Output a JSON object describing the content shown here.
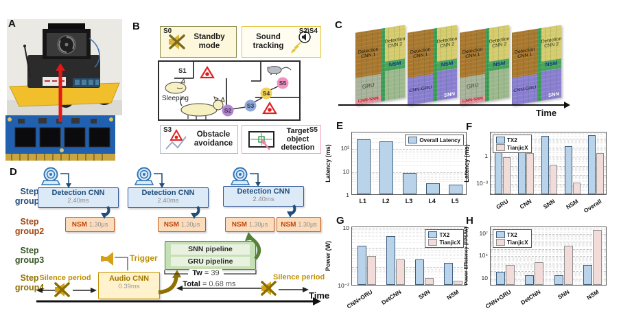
{
  "figure": {
    "panel_labels": {
      "a": "A",
      "b": "B",
      "c": "C",
      "d": "D",
      "e": "E",
      "f": "F",
      "g": "G",
      "h": "H"
    }
  },
  "pb": {
    "standby": {
      "tag": "S0",
      "label": "Standby mode"
    },
    "sound": {
      "tag": "S2\\S4",
      "label": "Sound tracking"
    },
    "map": {
      "s1": "S1",
      "sleeping": "Sleeping",
      "nodes": [
        "S2",
        "S3",
        "S4",
        "S5"
      ]
    },
    "obstacle": {
      "tag": "S3",
      "label": "Obstacle avoidance"
    },
    "target": {
      "tag": "S5",
      "label": "Target object detection"
    }
  },
  "pc": {
    "time_label": "Time",
    "chips": [
      {
        "type": "A",
        "labels": {
          "det1": "Detection CNN 1",
          "det2": "Detection CNN 2",
          "nsm": "NSM",
          "bl": "GRU",
          "bs": "CNN-SNN"
        }
      },
      {
        "type": "B",
        "labels": {
          "det1": "Detection CNN 1",
          "det2": "Detection CNN 2",
          "nsm": "NSM",
          "bl": "CNN-GRU",
          "br": "SNN"
        }
      },
      {
        "type": "A",
        "labels": {
          "det1": "Detection CNN 1",
          "det2": "Detection CNN 2",
          "nsm": "NSM",
          "bl": "GRU",
          "bs": "CNN-SNN"
        }
      },
      {
        "type": "B",
        "labels": {
          "det1": "Detection CNN 1",
          "det2": "Detection CNN 2",
          "nsm": "NSM",
          "bl": "CNN-GRU",
          "br": "SNN"
        }
      }
    ]
  },
  "pd": {
    "steps": [
      "Step group1",
      "Step group2",
      "Step group3",
      "Step group4"
    ],
    "step_colors": [
      "#1f4e79",
      "#a3420a",
      "#375623",
      "#8f7000"
    ],
    "det_cnn": {
      "title": "Detection CNN",
      "time": "2.40ms"
    },
    "nsm": {
      "title": "NSM",
      "time": "1.30μs"
    },
    "pipelines": {
      "snn": "SNN pipeline",
      "gru": "GRU pipeline"
    },
    "tw": {
      "label": "Tw",
      "value": "= 39"
    },
    "total": {
      "label": "Total",
      "value": "= 0.68 ms"
    },
    "trigger": "Trigger",
    "audio": {
      "title": "Audio CNN",
      "time": "0.39ms"
    },
    "silence": "Silence period",
    "time_label": "Time"
  },
  "chart_data": [
    {
      "id": "e",
      "type": "bar",
      "log": true,
      "ylabel": "Latency (ms)",
      "ymin": 1,
      "ymax": 500,
      "yticks": [
        {
          "v": 1,
          "label": "1"
        },
        {
          "v": 10,
          "label": "10"
        },
        {
          "v": 100,
          "label": "10²"
        }
      ],
      "categories": [
        "L1",
        "L2",
        "L3",
        "L4",
        "L5"
      ],
      "series": [
        {
          "name": "Overall Latency",
          "color": "#b9d3ea",
          "border": "#3f5d7a",
          "values": [
            230,
            185,
            8,
            3,
            2.6
          ]
        }
      ],
      "legend_pos": "tr",
      "rotate_x": false
    },
    {
      "id": "f",
      "type": "bar",
      "log": true,
      "ylabel": "Latency (ms)",
      "ymin": 5e-05,
      "ymax": 500,
      "yticks": [
        {
          "v": 1,
          "label": "1"
        },
        {
          "v": 0.001,
          "label": "10⁻³"
        }
      ],
      "categories": [
        "GRU",
        "CNN",
        "SNN",
        "NSM",
        "Overall"
      ],
      "series": [
        {
          "name": "TX2",
          "color": "#b9d3ea",
          "border": "#3f5d7a",
          "values": [
            6.5,
            11,
            150,
            10,
            190
          ]
        },
        {
          "name": "TianjicX",
          "color": "#f1dcda",
          "border": "#8f8f8f",
          "values": [
            0.6,
            1.9,
            0.1,
            0.001,
            1.9
          ]
        }
      ],
      "legend_pos": "tl",
      "rotate_x": true
    },
    {
      "id": "g",
      "type": "bar",
      "log": true,
      "ylabel": "Power (W)",
      "ymin": 0.01,
      "ymax": 12,
      "yticks": [
        {
          "v": 10,
          "label": "10"
        },
        {
          "v": 0.01,
          "label": "10⁻²"
        }
      ],
      "categories": [
        "CNN+GRU",
        "DetCNN",
        "SNN",
        "NSM"
      ],
      "series": [
        {
          "name": "TX2",
          "color": "#b9d3ea",
          "border": "#3f5d7a",
          "values": [
            1.1,
            3.5,
            0.22,
            0.14
          ]
        },
        {
          "name": "TianjicX",
          "color": "#f1dcda",
          "border": "#8f8f8f",
          "values": [
            0.33,
            0.21,
            0.023,
            0.017
          ]
        }
      ],
      "legend_pos": "tr",
      "rotate_x": true
    },
    {
      "id": "h",
      "type": "bar",
      "log": true,
      "ylabel": "Power Efficiency (FPS/W)",
      "ymin": 1,
      "ymax": 80000000,
      "yticks": [
        {
          "v": 10,
          "label": "10"
        },
        {
          "v": 10000,
          "label": "10⁴"
        },
        {
          "v": 10000000,
          "label": "10⁷"
        }
      ],
      "categories": [
        "CNN+GRU",
        "DetCNN",
        "SNN",
        "NSM"
      ],
      "series": [
        {
          "name": "TX2",
          "color": "#b9d3ea",
          "border": "#3f5d7a",
          "values": [
            56,
            20,
            20,
            420
          ]
        },
        {
          "name": "TianjicX",
          "color": "#f1dcda",
          "border": "#8f8f8f",
          "values": [
            450,
            1200,
            180000,
            23000000
          ]
        }
      ],
      "legend_pos": "tl",
      "rotate_x": true
    }
  ]
}
